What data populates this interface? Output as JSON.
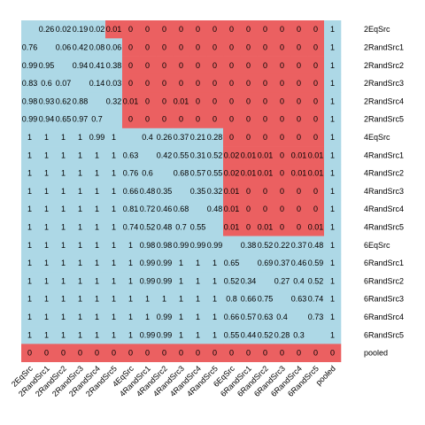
{
  "chart_data": {
    "type": "heatmap",
    "title": "",
    "xlabel": "",
    "ylabel": "",
    "legend": "none",
    "grid": false,
    "colors": {
      "low": "#EB6061",
      "high": "#ADD8E6",
      "cutoff_text": "values shown in red when below ~0.05 and at upper-right triangle / pooled row"
    },
    "rows": [
      "2EqSrc",
      "2RandSrc1",
      "2RandSrc2",
      "2RandSrc3",
      "2RandSrc4",
      "2RandSrc5",
      "4EqSrc",
      "4RandSrc1",
      "4RandSrc2",
      "4RandSrc3",
      "4RandSrc4",
      "4RandSrc5",
      "6EqSrc",
      "6RandSrc1",
      "6RandSrc2",
      "6RandSrc3",
      "6RandSrc4",
      "6RandSrc5",
      "pooled"
    ],
    "columns": [
      "2EqSrc",
      "2RandSrc1",
      "2RandSrc2",
      "2RandSrc3",
      "2RandSrc4",
      "2RandSrc5",
      "4EqSrc",
      "4RandSrc1",
      "4RandSrc2",
      "4RandSrc3",
      "4RandSrc4",
      "4RandSrc5",
      "6EqSrc",
      "6RandSrc1",
      "6RandSrc2",
      "6RandSrc3",
      "6RandSrc4",
      "6RandSrc5",
      "pooled"
    ],
    "cells": [
      [
        "",
        "0.26",
        "0.02",
        "0.19",
        "0.02",
        "0.01",
        "0",
        "0",
        "0",
        "0",
        "0",
        "0",
        "0",
        "0",
        "0",
        "0",
        "0",
        "0",
        "1"
      ],
      [
        "0.76",
        "",
        "0.06",
        "0.42",
        "0.08",
        "0.06",
        "0",
        "0",
        "0",
        "0",
        "0",
        "0",
        "0",
        "0",
        "0",
        "0",
        "0",
        "0",
        "1"
      ],
      [
        "0.99",
        "0.95",
        "",
        "0.94",
        "0.41",
        "0.38",
        "0",
        "0",
        "0",
        "0",
        "0",
        "0",
        "0",
        "0",
        "0",
        "0",
        "0",
        "0",
        "1"
      ],
      [
        "0.83",
        "0.6",
        "0.07",
        "",
        "0.14",
        "0.03",
        "0",
        "0",
        "0",
        "0",
        "0",
        "0",
        "0",
        "0",
        "0",
        "0",
        "0",
        "0",
        "1"
      ],
      [
        "0.98",
        "0.93",
        "0.62",
        "0.88",
        "",
        "0.32",
        "0.01",
        "0",
        "0",
        "0.01",
        "0",
        "0",
        "0",
        "0",
        "0",
        "0",
        "0",
        "0",
        "1"
      ],
      [
        "0.99",
        "0.94",
        "0.65",
        "0.97",
        "0.7",
        "",
        "0",
        "0",
        "0",
        "0",
        "0",
        "0",
        "0",
        "0",
        "0",
        "0",
        "0",
        "0",
        "1"
      ],
      [
        "1",
        "1",
        "1",
        "1",
        "0.99",
        "1",
        "",
        "0.4",
        "0.26",
        "0.37",
        "0.21",
        "0.28",
        "0",
        "0",
        "0",
        "0",
        "0",
        "0",
        "1"
      ],
      [
        "1",
        "1",
        "1",
        "1",
        "1",
        "1",
        "0.63",
        "",
        "0.42",
        "0.55",
        "0.31",
        "0.52",
        "0.02",
        "0.01",
        "0.01",
        "0",
        "0.01",
        "0.01",
        "1"
      ],
      [
        "1",
        "1",
        "1",
        "1",
        "1",
        "1",
        "0.76",
        "0.6",
        "",
        "0.68",
        "0.57",
        "0.55",
        "0.02",
        "0.01",
        "0.01",
        "0",
        "0.01",
        "0.01",
        "1"
      ],
      [
        "1",
        "1",
        "1",
        "1",
        "1",
        "1",
        "0.66",
        "0.48",
        "0.35",
        "",
        "0.35",
        "0.32",
        "0.01",
        "0",
        "0",
        "0",
        "0",
        "0",
        "1"
      ],
      [
        "1",
        "1",
        "1",
        "1",
        "1",
        "1",
        "0.81",
        "0.72",
        "0.46",
        "0.68",
        "",
        "0.48",
        "0.01",
        "0",
        "0",
        "0",
        "0",
        "0",
        "1"
      ],
      [
        "1",
        "1",
        "1",
        "1",
        "1",
        "1",
        "0.74",
        "0.52",
        "0.48",
        "0.7",
        "0.55",
        "",
        "0.01",
        "0",
        "0.01",
        "0",
        "0",
        "0.01",
        "1"
      ],
      [
        "1",
        "1",
        "1",
        "1",
        "1",
        "1",
        "1",
        "0.98",
        "0.98",
        "0.99",
        "0.99",
        "0.99",
        "",
        "0.38",
        "0.52",
        "0.22",
        "0.37",
        "0.48",
        "1"
      ],
      [
        "1",
        "1",
        "1",
        "1",
        "1",
        "1",
        "1",
        "0.99",
        "0.99",
        "1",
        "1",
        "1",
        "0.65",
        "",
        "0.69",
        "0.37",
        "0.46",
        "0.59",
        "1"
      ],
      [
        "1",
        "1",
        "1",
        "1",
        "1",
        "1",
        "1",
        "0.99",
        "0.99",
        "1",
        "1",
        "1",
        "0.52",
        "0.34",
        "",
        "0.27",
        "0.4",
        "0.52",
        "1"
      ],
      [
        "1",
        "1",
        "1",
        "1",
        "1",
        "1",
        "1",
        "1",
        "1",
        "1",
        "1",
        "1",
        "0.8",
        "0.66",
        "0.75",
        "",
        "0.63",
        "0.74",
        "1"
      ],
      [
        "1",
        "1",
        "1",
        "1",
        "1",
        "1",
        "1",
        "1",
        "0.99",
        "1",
        "1",
        "1",
        "0.66",
        "0.57",
        "0.63",
        "0.4",
        "",
        "0.73",
        "1"
      ],
      [
        "1",
        "1",
        "1",
        "1",
        "1",
        "1",
        "1",
        "0.99",
        "0.99",
        "1",
        "1",
        "1",
        "0.55",
        "0.44",
        "0.52",
        "0.28",
        "0.3",
        "",
        "1"
      ],
      [
        "0",
        "0",
        "0",
        "0",
        "0",
        "0",
        "0",
        "0",
        "0",
        "0",
        "0",
        "0",
        "0",
        "0",
        "0",
        "0",
        "0",
        "0",
        "0"
      ]
    ],
    "red_cells": [
      [
        0,
        5
      ],
      [
        0,
        6
      ],
      [
        0,
        7
      ],
      [
        0,
        8
      ],
      [
        0,
        9
      ],
      [
        0,
        10
      ],
      [
        0,
        11
      ],
      [
        0,
        12
      ],
      [
        0,
        13
      ],
      [
        0,
        14
      ],
      [
        0,
        15
      ],
      [
        0,
        16
      ],
      [
        0,
        17
      ]
    ]
  }
}
